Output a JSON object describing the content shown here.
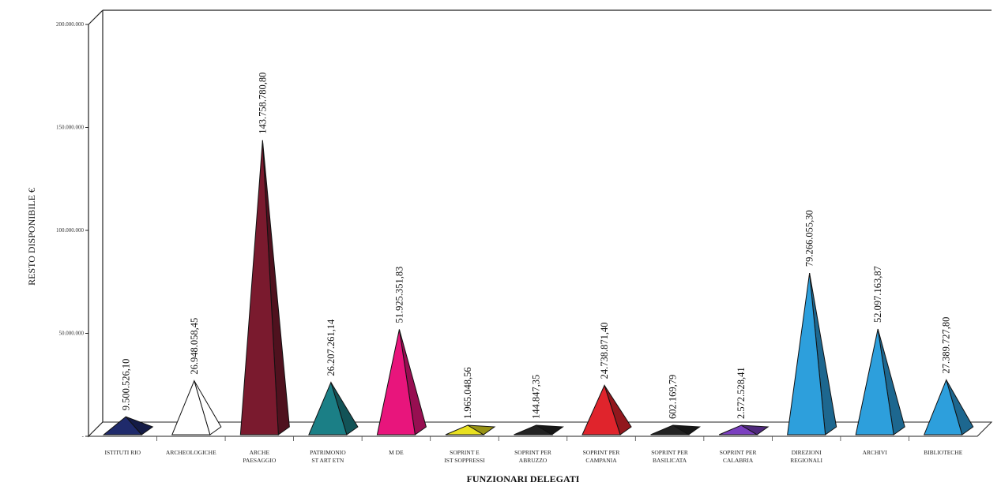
{
  "chart_data": {
    "type": "bar",
    "title": "",
    "xlabel": "FUNZIONARI DELEGATI",
    "ylabel": "RESTO DISPONIBILE €",
    "ylim": [
      0,
      200000000
    ],
    "yticks": [
      "-",
      "50.000.000",
      "100.000.000",
      "150.000.000",
      "200.000.000"
    ],
    "grid": false,
    "categories": [
      [
        "ISTITUTI RIO"
      ],
      [
        "ARCHEOLOGICHE"
      ],
      [
        "ARCHE",
        "PAESAGGIO"
      ],
      [
        "PATRIMONIO",
        "ST ART ETN"
      ],
      [
        "M DE"
      ],
      [
        "SOPRINT E",
        "IST SOPPRESSI"
      ],
      [
        "SOPRINT PER",
        "ABRUZZO"
      ],
      [
        "SOPRINT PER",
        "CAMPANIA"
      ],
      [
        "SOPRINT PER",
        "BASILICATA"
      ],
      [
        "SOPRINT PER",
        "CALABRIA"
      ],
      [
        "DIREZIONI",
        "REGIONALI"
      ],
      [
        "ARCHIVI"
      ],
      [
        "BIBLIOTECHE"
      ]
    ],
    "values": [
      9500526.1,
      26948058.45,
      143758780.8,
      26207261.14,
      51925351.83,
      1965048.56,
      144847.35,
      24738871.4,
      602169.79,
      2572528.41,
      79266055.3,
      52097163.87,
      27389727.8
    ],
    "value_labels": [
      "9.500.526,10",
      "26.948.058,45",
      "143.758.780,80",
      "26.207.261,14",
      "51.925.351,83",
      "1.965.048,56",
      "144.847,35",
      "24.738.871,40",
      "602.169,79",
      "2.572.528,41",
      "79.266.055,30",
      "52.097.163,87",
      "27.389.727,80"
    ],
    "colors": [
      "#1f2a6b",
      "#ffffff",
      "#7a1a2e",
      "#1b7f86",
      "#e8157c",
      "#e8e020",
      "#222222",
      "#e0242c",
      "#222222",
      "#7a3fbf",
      "#2d9fdc",
      "#2d9fdc",
      "#2d9fdc"
    ],
    "legend": "none"
  }
}
